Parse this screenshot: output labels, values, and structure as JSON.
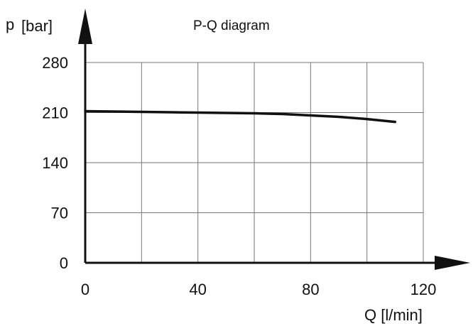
{
  "chart_data": {
    "type": "line",
    "title": "P-Q diagram",
    "ylabel_symbol": "p",
    "ylabel_unit": "[bar]",
    "xlabel": "Q [l/min]",
    "xlim": [
      0,
      120
    ],
    "ylim": [
      0,
      280
    ],
    "x_ticks": [
      "0",
      "40",
      "80",
      "120"
    ],
    "y_ticks": [
      "0",
      "70",
      "140",
      "210",
      "280"
    ],
    "x_grid": [
      0,
      20,
      40,
      60,
      80,
      100,
      120
    ],
    "y_grid": [
      0,
      70,
      140,
      210,
      280
    ],
    "grid": true,
    "legend": "none",
    "line_color": "#111111",
    "grid_color": "#777777",
    "series": [
      {
        "x": [
          0,
          10,
          20,
          30,
          40,
          50,
          60,
          70,
          80,
          90,
          100,
          110
        ],
        "y": [
          212,
          211.5,
          211,
          210.5,
          210,
          209.5,
          209,
          208,
          206,
          204,
          201,
          197
        ]
      }
    ]
  }
}
